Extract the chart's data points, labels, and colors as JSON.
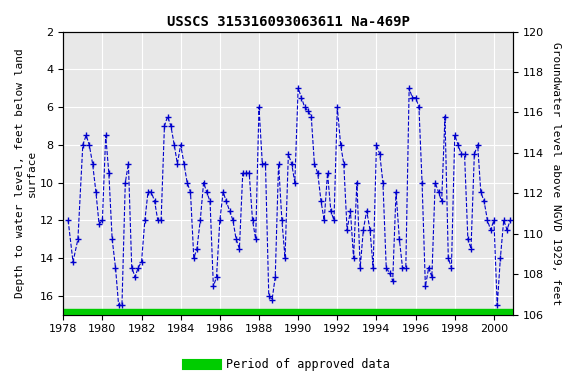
{
  "title": "USSCS 315316093063611 Na-469P",
  "ylabel_left": "Depth to water level, feet below land\nsurface",
  "ylabel_right": "Groundwater level above NGVD 1929, feet",
  "ylim_left_top": 2,
  "ylim_left_bottom": 17,
  "ylim_right_top": 120,
  "ylim_right_bottom": 106,
  "yticks_left": [
    2,
    4,
    6,
    8,
    10,
    12,
    14,
    16
  ],
  "yticks_right": [
    120,
    118,
    116,
    114,
    112,
    110,
    108,
    106
  ],
  "xlim": [
    1978,
    2001
  ],
  "xticks": [
    1978,
    1980,
    1982,
    1984,
    1986,
    1988,
    1990,
    1992,
    1994,
    1996,
    1998,
    2000
  ],
  "line_color": "#0000CC",
  "marker": "+",
  "linestyle": "--",
  "markersize": 4,
  "linewidth": 0.8,
  "markeredgewidth": 1.0,
  "legend_label": "Period of approved data",
  "legend_color": "#00CC00",
  "background_color": "#ffffff",
  "plot_bg_color": "#e8e8e8",
  "grid_color": "#ffffff",
  "title_fontsize": 10,
  "axis_label_fontsize": 8,
  "tick_fontsize": 8,
  "green_bar_y": 16.7,
  "green_bar_height": 0.6,
  "data_x": [
    1978.25,
    1978.5,
    1978.75,
    1979.0,
    1979.17,
    1979.33,
    1979.5,
    1979.67,
    1979.83,
    1980.0,
    1980.17,
    1980.33,
    1980.5,
    1980.67,
    1980.83,
    1981.0,
    1981.17,
    1981.33,
    1981.5,
    1981.67,
    1981.83,
    1982.0,
    1982.17,
    1982.33,
    1982.5,
    1982.67,
    1982.83,
    1983.0,
    1983.17,
    1983.33,
    1983.5,
    1983.67,
    1983.83,
    1984.0,
    1984.17,
    1984.33,
    1984.5,
    1984.67,
    1984.83,
    1985.0,
    1985.17,
    1985.33,
    1985.5,
    1985.67,
    1985.83,
    1986.0,
    1986.17,
    1986.33,
    1986.5,
    1986.67,
    1986.83,
    1987.0,
    1987.17,
    1987.33,
    1987.5,
    1987.67,
    1987.83,
    1988.0,
    1988.17,
    1988.33,
    1988.5,
    1988.67,
    1988.83,
    1989.0,
    1989.17,
    1989.33,
    1989.5,
    1989.67,
    1989.83,
    1990.0,
    1990.17,
    1990.33,
    1990.5,
    1990.67,
    1990.83,
    1991.0,
    1991.17,
    1991.33,
    1991.5,
    1991.67,
    1991.83,
    1992.0,
    1992.17,
    1992.33,
    1992.5,
    1992.67,
    1992.83,
    1993.0,
    1993.17,
    1993.33,
    1993.5,
    1993.67,
    1993.83,
    1994.0,
    1994.17,
    1994.33,
    1994.5,
    1994.67,
    1994.83,
    1995.0,
    1995.17,
    1995.33,
    1995.5,
    1995.67,
    1995.83,
    1996.0,
    1996.17,
    1996.33,
    1996.5,
    1996.67,
    1996.83,
    1997.0,
    1997.17,
    1997.33,
    1997.5,
    1997.67,
    1997.83,
    1998.0,
    1998.17,
    1998.33,
    1998.5,
    1998.67,
    1998.83,
    1999.0,
    1999.17,
    1999.33,
    1999.5,
    1999.67,
    1999.83,
    2000.0,
    2000.17,
    2000.33,
    2000.5,
    2000.67,
    2000.83
  ],
  "data_y": [
    12.0,
    14.2,
    13.0,
    8.0,
    7.5,
    8.0,
    9.0,
    10.5,
    12.2,
    12.0,
    7.5,
    9.5,
    13.0,
    14.5,
    16.5,
    16.5,
    10.0,
    9.0,
    14.5,
    15.0,
    14.5,
    14.2,
    12.0,
    10.5,
    10.5,
    11.0,
    12.0,
    12.0,
    7.0,
    6.5,
    7.0,
    8.0,
    9.0,
    8.0,
    9.0,
    10.0,
    10.5,
    14.0,
    13.5,
    12.0,
    10.0,
    10.5,
    11.0,
    15.5,
    15.0,
    12.0,
    10.5,
    11.0,
    11.5,
    12.0,
    13.0,
    13.5,
    9.5,
    9.5,
    9.5,
    12.0,
    13.0,
    6.0,
    9.0,
    9.0,
    16.0,
    16.2,
    15.0,
    9.0,
    12.0,
    14.0,
    8.5,
    9.0,
    10.0,
    5.0,
    5.5,
    6.0,
    6.2,
    6.5,
    9.0,
    9.5,
    11.0,
    12.0,
    9.5,
    11.5,
    12.0,
    6.0,
    8.0,
    9.0,
    12.5,
    11.5,
    14.0,
    10.0,
    14.5,
    12.5,
    11.5,
    12.5,
    14.5,
    8.0,
    8.5,
    10.0,
    14.5,
    14.8,
    15.2,
    10.5,
    13.0,
    14.5,
    14.5,
    5.0,
    5.5,
    5.5,
    6.0,
    10.0,
    15.5,
    14.5,
    15.0,
    10.0,
    10.5,
    11.0,
    6.5,
    14.0,
    14.5,
    7.5,
    8.0,
    8.5,
    8.5,
    13.0,
    13.5,
    8.5,
    8.0,
    10.5,
    11.0,
    12.0,
    12.5,
    12.0,
    16.5,
    14.0,
    12.0,
    12.5,
    12.0
  ]
}
